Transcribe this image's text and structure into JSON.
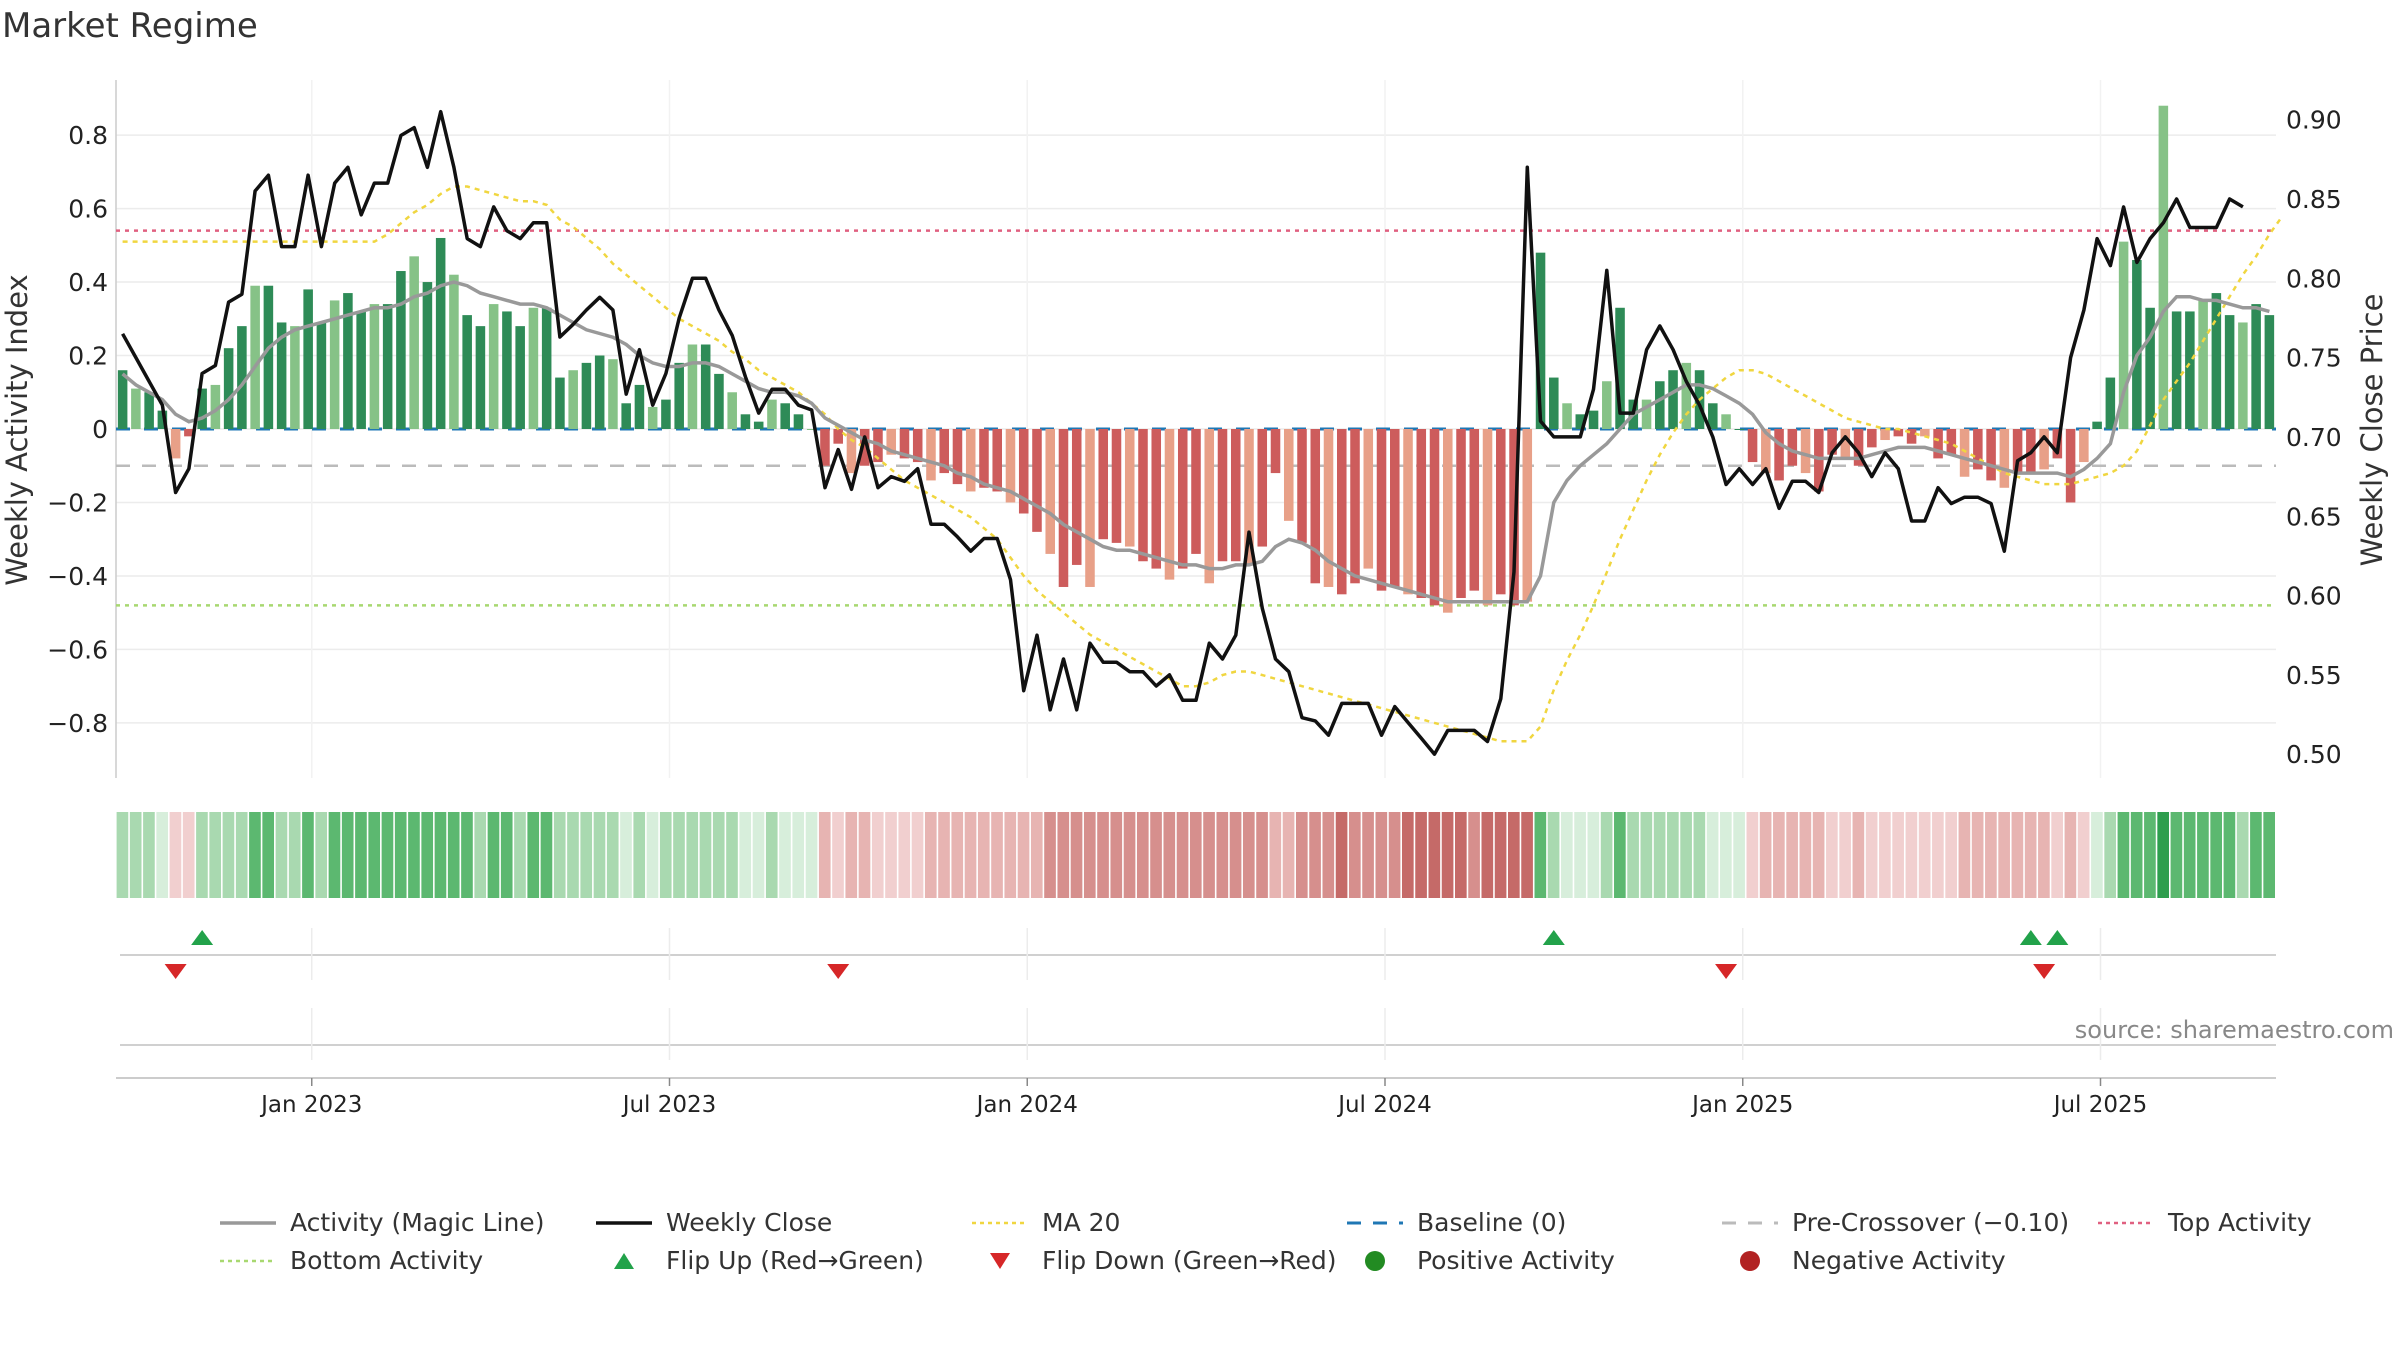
{
  "title": "Market Regime",
  "source": "source: sharemaestro.com",
  "colors": {
    "green_dark": "#2e8b57",
    "green_light": "#86c287",
    "red_dark": "#cd5c5c",
    "red_light": "#e8a088",
    "magic_line": "#999999",
    "close": "#111111",
    "ma20": "#f0d640",
    "baseline": "#1f77b4",
    "precross": "#bbbbbb",
    "top_activity": "#e06080",
    "bottom_activity": "#a8d870",
    "flip_up": "#22a24a",
    "flip_down": "#d62728",
    "positive": "#228b22",
    "negative": "#b22222"
  },
  "legend": [
    {
      "key": "magic",
      "label": "Activity (Magic Line)",
      "style": "line",
      "color": "#999999"
    },
    {
      "key": "close",
      "label": "Weekly Close",
      "style": "line",
      "color": "#111111"
    },
    {
      "key": "ma20",
      "label": "MA 20",
      "style": "dotted",
      "color": "#f0d640"
    },
    {
      "key": "baseline",
      "label": "Baseline (0)",
      "style": "dashed",
      "color": "#1f77b4"
    },
    {
      "key": "precross",
      "label": "Pre-Crossover (−0.10)",
      "style": "dashed",
      "color": "#bbbbbb"
    },
    {
      "key": "top",
      "label": "Top Activity",
      "style": "dotted",
      "color": "#e06080"
    },
    {
      "key": "bottom",
      "label": "Bottom Activity",
      "style": "dotted",
      "color": "#a8d870"
    },
    {
      "key": "flipup",
      "label": "Flip Up (Red→Green)",
      "style": "triangle-up",
      "color": "#22a24a"
    },
    {
      "key": "flipdown",
      "label": "Flip Down (Green→Red)",
      "style": "triangle-down",
      "color": "#d62728"
    },
    {
      "key": "pos",
      "label": "Positive Activity",
      "style": "circle",
      "color": "#228b22"
    },
    {
      "key": "neg",
      "label": "Negative Activity",
      "style": "circle",
      "color": "#b22222"
    }
  ],
  "chart_data": {
    "type": "bar",
    "title": "Market Regime",
    "ylabel": "Weekly Activity Index",
    "y2label": "Weekly Close Price",
    "ylim": [
      -0.95,
      0.95
    ],
    "y2lim": [
      0.485,
      0.925
    ],
    "yticks": [
      0.8,
      0.6,
      0.4,
      0.2,
      0,
      -0.2,
      -0.4,
      -0.6,
      -0.8
    ],
    "ytick_labels": [
      "0.8",
      "0.6",
      "0.4",
      "0.2",
      "0",
      "−0.2",
      "−0.4",
      "−0.6",
      "−0.8"
    ],
    "y2ticks": [
      0.9,
      0.85,
      0.8,
      0.75,
      0.7,
      0.65,
      0.6,
      0.55,
      0.5
    ],
    "y2tick_labels": [
      "0.90",
      "0.85",
      "0.80",
      "0.75",
      "0.70",
      "0.65",
      "0.60",
      "0.55",
      "0.50"
    ],
    "xlim": [
      0,
      160
    ],
    "xticks": [
      14.5,
      41,
      67.5,
      94,
      120.5,
      147
    ],
    "xtick_labels": [
      "Jan 2023",
      "Jul 2023",
      "Jan 2024",
      "Jul 2024",
      "Jan 2025",
      "Jul 2025"
    ],
    "baseline": 0,
    "pre_crossover": -0.1,
    "top_activity": 0.54,
    "bottom_activity": -0.48,
    "activity": [
      0.16,
      0.11,
      0.1,
      0.05,
      -0.08,
      -0.02,
      0.11,
      0.12,
      0.22,
      0.28,
      0.39,
      0.39,
      0.29,
      0.28,
      0.38,
      0.29,
      0.35,
      0.37,
      0.32,
      0.34,
      0.34,
      0.43,
      0.47,
      0.4,
      0.52,
      0.42,
      0.31,
      0.28,
      0.34,
      0.32,
      0.28,
      0.33,
      0.33,
      0.14,
      0.16,
      0.18,
      0.2,
      0.19,
      0.07,
      0.12,
      0.06,
      0.08,
      0.18,
      0.23,
      0.23,
      0.15,
      0.1,
      0.04,
      0.02,
      0.08,
      0.07,
      0.04,
      0.0,
      -0.1,
      -0.04,
      -0.12,
      -0.1,
      -0.09,
      -0.07,
      -0.08,
      -0.09,
      -0.14,
      -0.12,
      -0.15,
      -0.17,
      -0.16,
      -0.17,
      -0.2,
      -0.23,
      -0.28,
      -0.34,
      -0.43,
      -0.37,
      -0.43,
      -0.3,
      -0.31,
      -0.32,
      -0.36,
      -0.38,
      -0.41,
      -0.38,
      -0.34,
      -0.42,
      -0.36,
      -0.36,
      -0.37,
      -0.32,
      -0.12,
      -0.25,
      -0.31,
      -0.42,
      -0.43,
      -0.45,
      -0.42,
      -0.38,
      -0.44,
      -0.43,
      -0.45,
      -0.46,
      -0.48,
      -0.5,
      -0.46,
      -0.44,
      -0.48,
      -0.45,
      -0.48,
      -0.47,
      0.48,
      0.14,
      0.07,
      0.04,
      0.05,
      0.13,
      0.33,
      0.08,
      0.08,
      0.13,
      0.16,
      0.18,
      0.16,
      0.07,
      0.04,
      0.0,
      -0.09,
      -0.12,
      -0.14,
      -0.1,
      -0.12,
      -0.17,
      -0.07,
      -0.08,
      -0.1,
      -0.05,
      -0.03,
      -0.02,
      -0.04,
      -0.02,
      -0.08,
      -0.07,
      -0.13,
      -0.11,
      -0.14,
      -0.16,
      -0.12,
      -0.12,
      -0.11,
      -0.08,
      -0.2,
      -0.09,
      0.02,
      0.14,
      0.51,
      0.46,
      0.33,
      0.88,
      0.32,
      0.32,
      0.35,
      0.37,
      0.31,
      0.29,
      0.34,
      0.31
    ],
    "magic_line": [
      0.15,
      0.12,
      0.1,
      0.08,
      0.04,
      0.02,
      0.03,
      0.05,
      0.08,
      0.12,
      0.17,
      0.22,
      0.25,
      0.27,
      0.28,
      0.29,
      0.3,
      0.31,
      0.32,
      0.33,
      0.33,
      0.34,
      0.36,
      0.37,
      0.39,
      0.4,
      0.39,
      0.37,
      0.36,
      0.35,
      0.34,
      0.34,
      0.33,
      0.31,
      0.29,
      0.27,
      0.26,
      0.25,
      0.23,
      0.2,
      0.18,
      0.17,
      0.17,
      0.18,
      0.18,
      0.17,
      0.15,
      0.13,
      0.11,
      0.1,
      0.1,
      0.09,
      0.07,
      0.03,
      0.01,
      -0.01,
      -0.03,
      -0.04,
      -0.06,
      -0.07,
      -0.08,
      -0.09,
      -0.1,
      -0.12,
      -0.13,
      -0.15,
      -0.16,
      -0.17,
      -0.19,
      -0.21,
      -0.23,
      -0.26,
      -0.28,
      -0.3,
      -0.32,
      -0.33,
      -0.33,
      -0.34,
      -0.35,
      -0.36,
      -0.37,
      -0.37,
      -0.38,
      -0.38,
      -0.37,
      -0.37,
      -0.36,
      -0.32,
      -0.3,
      -0.31,
      -0.33,
      -0.36,
      -0.38,
      -0.4,
      -0.41,
      -0.42,
      -0.43,
      -0.44,
      -0.45,
      -0.46,
      -0.47,
      -0.47,
      -0.47,
      -0.47,
      -0.47,
      -0.47,
      -0.47,
      -0.4,
      -0.2,
      -0.14,
      -0.1,
      -0.07,
      -0.04,
      0.0,
      0.04,
      0.06,
      0.08,
      0.1,
      0.12,
      0.12,
      0.11,
      0.09,
      0.07,
      0.04,
      -0.01,
      -0.04,
      -0.06,
      -0.07,
      -0.08,
      -0.08,
      -0.08,
      -0.08,
      -0.07,
      -0.06,
      -0.05,
      -0.05,
      -0.05,
      -0.06,
      -0.07,
      -0.08,
      -0.09,
      -0.1,
      -0.11,
      -0.12,
      -0.12,
      -0.12,
      -0.12,
      -0.13,
      -0.11,
      -0.08,
      -0.04,
      0.1,
      0.2,
      0.25,
      0.32,
      0.36,
      0.36,
      0.35,
      0.35,
      0.34,
      0.33,
      0.33,
      0.32
    ],
    "ma20": [
      0.51,
      0.51,
      0.51,
      0.51,
      0.51,
      0.51,
      0.51,
      0.51,
      0.51,
      0.51,
      0.51,
      0.51,
      0.51,
      0.51,
      0.51,
      0.51,
      0.51,
      0.51,
      0.51,
      0.51,
      0.53,
      0.56,
      0.59,
      0.61,
      0.64,
      0.66,
      0.66,
      0.65,
      0.64,
      0.63,
      0.62,
      0.62,
      0.61,
      0.57,
      0.55,
      0.52,
      0.49,
      0.45,
      0.42,
      0.39,
      0.36,
      0.33,
      0.3,
      0.28,
      0.26,
      0.24,
      0.21,
      0.19,
      0.16,
      0.14,
      0.12,
      0.1,
      0.07,
      0.04,
      0.0,
      -0.03,
      -0.05,
      -0.08,
      -0.11,
      -0.14,
      -0.16,
      -0.18,
      -0.2,
      -0.22,
      -0.24,
      -0.27,
      -0.3,
      -0.35,
      -0.4,
      -0.44,
      -0.47,
      -0.5,
      -0.53,
      -0.56,
      -0.58,
      -0.6,
      -0.62,
      -0.64,
      -0.66,
      -0.68,
      -0.7,
      -0.7,
      -0.69,
      -0.67,
      -0.66,
      -0.66,
      -0.67,
      -0.68,
      -0.69,
      -0.7,
      -0.71,
      -0.72,
      -0.73,
      -0.74,
      -0.75,
      -0.76,
      -0.77,
      -0.78,
      -0.79,
      -0.8,
      -0.81,
      -0.82,
      -0.83,
      -0.84,
      -0.85,
      -0.85,
      -0.85,
      -0.81,
      -0.71,
      -0.63,
      -0.56,
      -0.48,
      -0.39,
      -0.3,
      -0.22,
      -0.14,
      -0.07,
      -0.01,
      0.04,
      0.08,
      0.11,
      0.14,
      0.16,
      0.16,
      0.15,
      0.13,
      0.11,
      0.09,
      0.07,
      0.05,
      0.03,
      0.02,
      0.01,
      0.0,
      0.0,
      -0.01,
      -0.02,
      -0.03,
      -0.04,
      -0.06,
      -0.08,
      -0.1,
      -0.12,
      -0.13,
      -0.14,
      -0.15,
      -0.15,
      -0.15,
      -0.14,
      -0.13,
      -0.12,
      -0.1,
      -0.06,
      0.01,
      0.08,
      0.13,
      0.18,
      0.24,
      0.3,
      0.36,
      0.42,
      0.47,
      0.53,
      0.58
    ],
    "weekly_close": [
      0.765,
      0.75,
      0.735,
      0.72,
      0.665,
      0.68,
      0.74,
      0.745,
      0.785,
      0.79,
      0.855,
      0.865,
      0.82,
      0.82,
      0.865,
      0.82,
      0.86,
      0.87,
      0.84,
      0.86,
      0.86,
      0.89,
      0.895,
      0.87,
      0.905,
      0.87,
      0.825,
      0.82,
      0.845,
      0.83,
      0.825,
      0.835,
      0.835,
      0.763,
      0.771,
      0.78,
      0.788,
      0.78,
      0.727,
      0.755,
      0.72,
      0.74,
      0.775,
      0.8,
      0.8,
      0.78,
      0.764,
      0.738,
      0.715,
      0.73,
      0.73,
      0.72,
      0.717,
      0.668,
      0.692,
      0.667,
      0.7,
      0.668,
      0.675,
      0.672,
      0.68,
      0.645,
      0.645,
      0.637,
      0.628,
      0.636,
      0.636,
      0.61,
      0.54,
      0.575,
      0.528,
      0.56,
      0.528,
      0.57,
      0.558,
      0.558,
      0.552,
      0.552,
      0.543,
      0.55,
      0.534,
      0.534,
      0.57,
      0.56,
      0.575,
      0.64,
      0.592,
      0.56,
      0.552,
      0.523,
      0.521,
      0.512,
      0.532,
      0.532,
      0.532,
      0.512,
      0.53,
      0.52,
      0.51,
      0.5,
      0.515,
      0.515,
      0.515,
      0.508,
      0.535,
      0.615,
      0.87,
      0.71,
      0.7,
      0.7,
      0.7,
      0.73,
      0.805,
      0.715,
      0.715,
      0.755,
      0.77,
      0.755,
      0.735,
      0.72,
      0.7,
      0.67,
      0.68,
      0.67,
      0.68,
      0.655,
      0.672,
      0.672,
      0.665,
      0.69,
      0.7,
      0.69,
      0.675,
      0.69,
      0.68,
      0.647,
      0.647,
      0.668,
      0.658,
      0.662,
      0.662,
      0.658,
      0.628,
      0.685,
      0.69,
      0.7,
      0.69,
      0.75,
      0.78,
      0.825,
      0.808,
      0.845,
      0.81,
      0.825,
      0.835,
      0.85,
      0.832,
      0.832,
      0.832,
      0.85,
      0.845
    ],
    "regime_colors": {
      "strong_green": "#2e9e4e",
      "green": "#5cb870",
      "light_green": "#a9d9b0",
      "pale_green": "#d7eedb",
      "pale_red": "#f1cfcf",
      "light_red": "#e7b4b2",
      "red": "#d68f8d",
      "strong_red": "#c56a68"
    },
    "flip_up": [
      6,
      108,
      144,
      146
    ],
    "flip_down": [
      4,
      54,
      121,
      145
    ],
    "positive_activity": [],
    "negative_activity": []
  }
}
